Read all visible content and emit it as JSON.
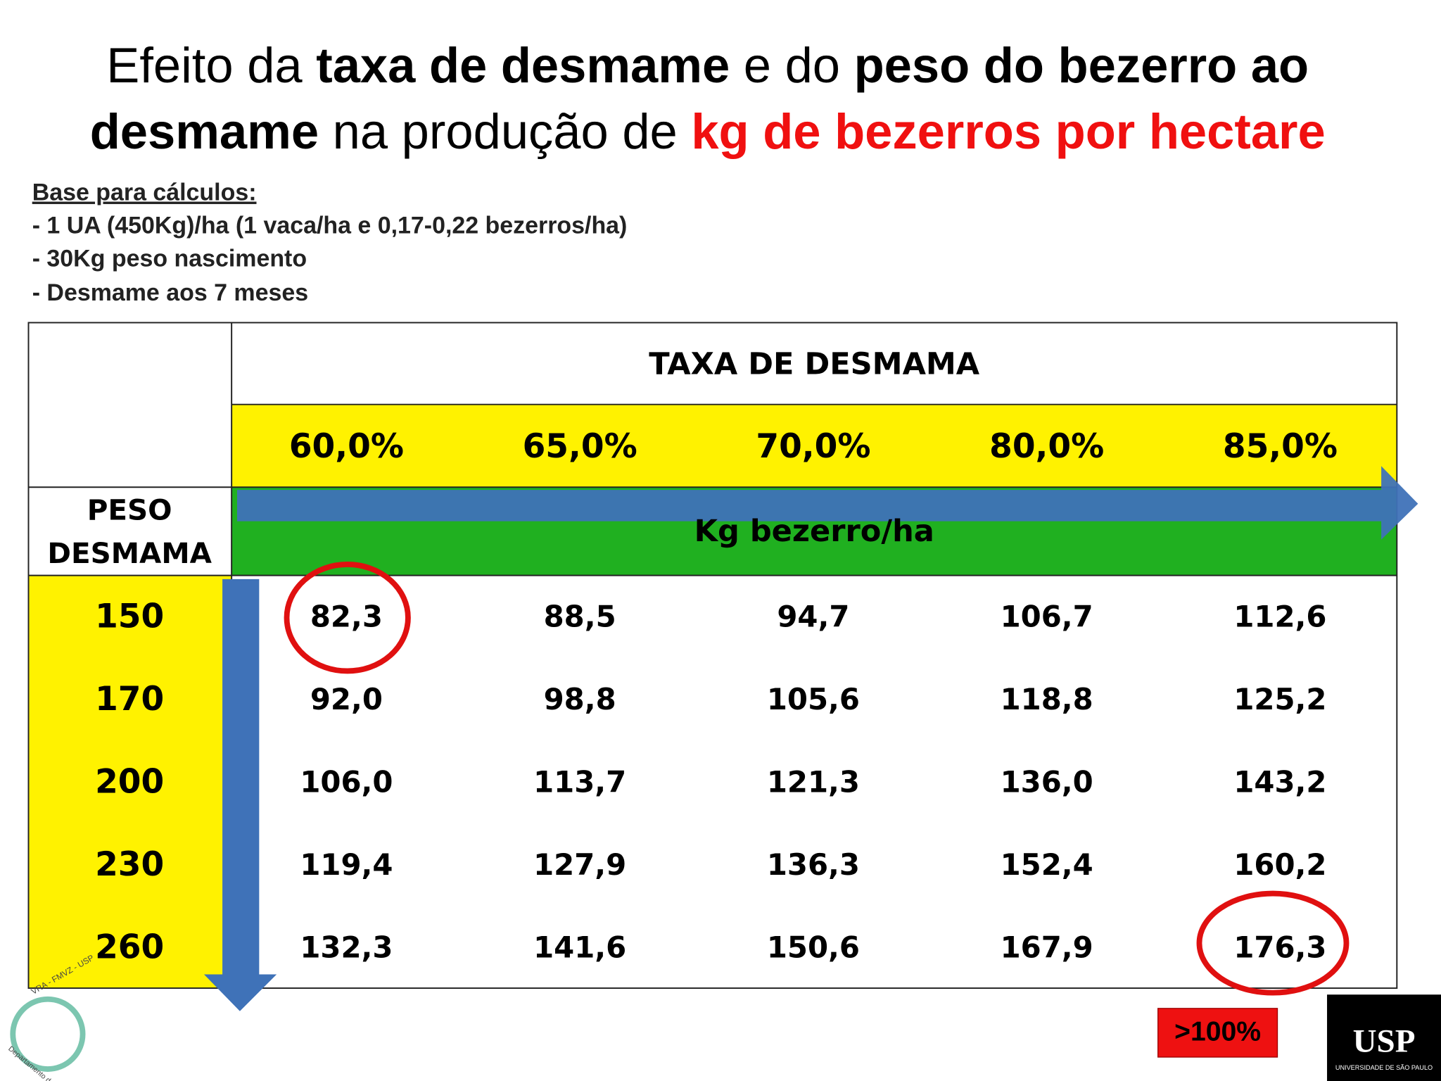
{
  "title": {
    "line1": [
      "Efeito da ",
      "taxa de desmame",
      " e do ",
      "peso do bezerro ao"
    ],
    "line2": [
      "desmame",
      " na produção de ",
      "kg de bezerros por hectare"
    ]
  },
  "notes": {
    "heading": "Base para cálculos:",
    "items": [
      "- 1 UA (450Kg)/ha (1 vaca/ha e 0,17-0,22 bezerros/ha)",
      "- 30Kg peso nascimento",
      "- Desmame aos 7 meses"
    ]
  },
  "table": {
    "header": "TAXA DE DESMAMA",
    "columns": [
      "60,0%",
      "65,0%",
      "70,0%",
      "80,0%",
      "85,0%"
    ],
    "row_header": [
      "PESO",
      "DESMAMA"
    ],
    "unit": "Kg bezerro/ha",
    "rows": [
      {
        "label": "150",
        "values": [
          "82,3",
          "88,5",
          "94,7",
          "106,7",
          "112,6"
        ]
      },
      {
        "label": "170",
        "values": [
          "92,0",
          "98,8",
          "105,6",
          "118,8",
          "125,2"
        ]
      },
      {
        "label": "200",
        "values": [
          "106,0",
          "113,7",
          "121,3",
          "136,0",
          "143,2"
        ]
      },
      {
        "label": "230",
        "values": [
          "119,4",
          "127,9",
          "136,3",
          "152,4",
          "160,2"
        ]
      },
      {
        "label": "260",
        "values": [
          "132,3",
          "141,6",
          "150,6",
          "167,9",
          "176,3"
        ]
      }
    ]
  },
  "badge": ">100%",
  "logos": {
    "left_ring": "VRA - FMVZ - USP",
    "left_caption": "Departamento de Reprodução Animal",
    "usp": "USP",
    "usp_caption": "UNIVERSIDADE DE SÃO PAULO"
  }
}
